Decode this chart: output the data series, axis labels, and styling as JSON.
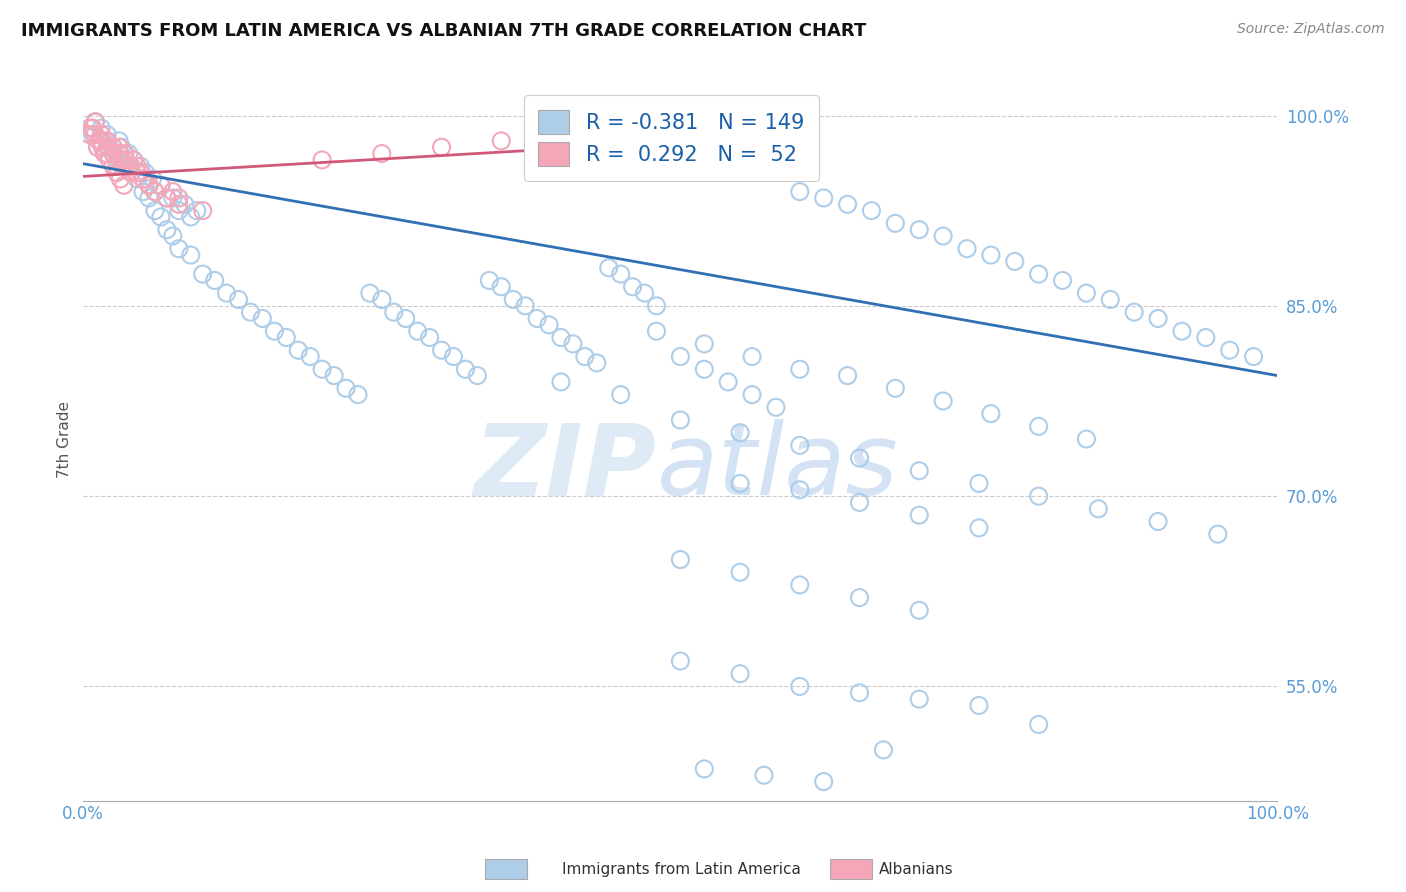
{
  "title": "IMMIGRANTS FROM LATIN AMERICA VS ALBANIAN 7TH GRADE CORRELATION CHART",
  "source": "Source: ZipAtlas.com",
  "xlabel_legend1": "Immigrants from Latin America",
  "xlabel_legend2": "Albanians",
  "ylabel": "7th Grade",
  "r_blue": -0.381,
  "n_blue": 149,
  "r_pink": 0.292,
  "n_pink": 52,
  "xlim": [
    0.0,
    1.0
  ],
  "ylim": [
    0.46,
    1.03
  ],
  "yticks": [
    0.55,
    0.7,
    0.85,
    1.0
  ],
  "ytick_labels": [
    "55.0%",
    "70.0%",
    "85.0%",
    "100.0%"
  ],
  "xticks": [
    0.0,
    0.25,
    0.5,
    0.75,
    1.0
  ],
  "xtick_labels": [
    "0.0%",
    "",
    "",
    "",
    "100.0%"
  ],
  "color_blue": "#aecde8",
  "color_pink": "#f4a7b9",
  "line_color_blue": "#3070b3",
  "line_color_pink": "#d05878",
  "blue_trendline_x": [
    0.0,
    1.0
  ],
  "blue_trendline_y": [
    0.962,
    0.795
  ],
  "pink_trendline_x": [
    0.0,
    0.42
  ],
  "pink_trendline_y": [
    0.952,
    0.975
  ],
  "blue_scatter_x": [
    0.005,
    0.008,
    0.01,
    0.012,
    0.015,
    0.018,
    0.02,
    0.022,
    0.025,
    0.028,
    0.03,
    0.032,
    0.035,
    0.038,
    0.04,
    0.042,
    0.045,
    0.048,
    0.05,
    0.052,
    0.055,
    0.058,
    0.06,
    0.065,
    0.07,
    0.075,
    0.08,
    0.085,
    0.09,
    0.095,
    0.01,
    0.015,
    0.02,
    0.025,
    0.03,
    0.035,
    0.04,
    0.045,
    0.05,
    0.055,
    0.06,
    0.065,
    0.07,
    0.075,
    0.08,
    0.09,
    0.1,
    0.11,
    0.12,
    0.13,
    0.14,
    0.15,
    0.16,
    0.17,
    0.18,
    0.19,
    0.2,
    0.21,
    0.22,
    0.23,
    0.24,
    0.25,
    0.26,
    0.27,
    0.28,
    0.29,
    0.3,
    0.31,
    0.32,
    0.33,
    0.34,
    0.35,
    0.36,
    0.37,
    0.38,
    0.39,
    0.4,
    0.41,
    0.42,
    0.43,
    0.44,
    0.45,
    0.46,
    0.47,
    0.48,
    0.5,
    0.52,
    0.54,
    0.56,
    0.58,
    0.6,
    0.62,
    0.64,
    0.66,
    0.68,
    0.7,
    0.72,
    0.74,
    0.76,
    0.78,
    0.8,
    0.82,
    0.84,
    0.86,
    0.88,
    0.9,
    0.92,
    0.94,
    0.96,
    0.98,
    0.5,
    0.55,
    0.6,
    0.65,
    0.7,
    0.75,
    0.8,
    0.85,
    0.9,
    0.95,
    0.48,
    0.52,
    0.56,
    0.6,
    0.64,
    0.68,
    0.72,
    0.76,
    0.8,
    0.84,
    0.4,
    0.45,
    0.5,
    0.55,
    0.6,
    0.65,
    0.7,
    0.75,
    0.8,
    0.5,
    0.55,
    0.6,
    0.65,
    0.7,
    0.55,
    0.6,
    0.65,
    0.7,
    0.75,
    0.52,
    0.57,
    0.62,
    0.67
  ],
  "blue_scatter_y": [
    0.99,
    0.985,
    0.995,
    0.975,
    0.98,
    0.97,
    0.985,
    0.975,
    0.97,
    0.965,
    0.98,
    0.975,
    0.965,
    0.97,
    0.96,
    0.965,
    0.955,
    0.96,
    0.95,
    0.955,
    0.945,
    0.95,
    0.94,
    0.945,
    0.935,
    0.935,
    0.925,
    0.93,
    0.92,
    0.925,
    0.995,
    0.99,
    0.98,
    0.975,
    0.965,
    0.96,
    0.955,
    0.95,
    0.94,
    0.935,
    0.925,
    0.92,
    0.91,
    0.905,
    0.895,
    0.89,
    0.875,
    0.87,
    0.86,
    0.855,
    0.845,
    0.84,
    0.83,
    0.825,
    0.815,
    0.81,
    0.8,
    0.795,
    0.785,
    0.78,
    0.86,
    0.855,
    0.845,
    0.84,
    0.83,
    0.825,
    0.815,
    0.81,
    0.8,
    0.795,
    0.87,
    0.865,
    0.855,
    0.85,
    0.84,
    0.835,
    0.825,
    0.82,
    0.81,
    0.805,
    0.88,
    0.875,
    0.865,
    0.86,
    0.85,
    0.81,
    0.8,
    0.79,
    0.78,
    0.77,
    0.94,
    0.935,
    0.93,
    0.925,
    0.915,
    0.91,
    0.905,
    0.895,
    0.89,
    0.885,
    0.875,
    0.87,
    0.86,
    0.855,
    0.845,
    0.84,
    0.83,
    0.825,
    0.815,
    0.81,
    0.76,
    0.75,
    0.74,
    0.73,
    0.72,
    0.71,
    0.7,
    0.69,
    0.68,
    0.67,
    0.83,
    0.82,
    0.81,
    0.8,
    0.795,
    0.785,
    0.775,
    0.765,
    0.755,
    0.745,
    0.79,
    0.78,
    0.57,
    0.56,
    0.55,
    0.545,
    0.54,
    0.535,
    0.52,
    0.65,
    0.64,
    0.63,
    0.62,
    0.61,
    0.71,
    0.705,
    0.695,
    0.685,
    0.675,
    0.485,
    0.48,
    0.475,
    0.5
  ],
  "pink_scatter_x": [
    0.005,
    0.008,
    0.01,
    0.012,
    0.015,
    0.018,
    0.02,
    0.022,
    0.025,
    0.028,
    0.03,
    0.032,
    0.035,
    0.038,
    0.04,
    0.042,
    0.045,
    0.048,
    0.05,
    0.055,
    0.06,
    0.065,
    0.07,
    0.075,
    0.08,
    0.015,
    0.02,
    0.025,
    0.03,
    0.035,
    0.04,
    0.045,
    0.05,
    0.055,
    0.06,
    0.007,
    0.01,
    0.013,
    0.016,
    0.019,
    0.022,
    0.025,
    0.028,
    0.031,
    0.034,
    0.2,
    0.25,
    0.3,
    0.35,
    0.39,
    0.08,
    0.1
  ],
  "pink_scatter_y": [
    0.985,
    0.99,
    0.995,
    0.975,
    0.98,
    0.97,
    0.975,
    0.965,
    0.97,
    0.96,
    0.975,
    0.965,
    0.97,
    0.96,
    0.955,
    0.965,
    0.96,
    0.955,
    0.95,
    0.945,
    0.94,
    0.945,
    0.935,
    0.94,
    0.93,
    0.985,
    0.98,
    0.975,
    0.97,
    0.965,
    0.96,
    0.955,
    0.95,
    0.945,
    0.94,
    0.99,
    0.985,
    0.98,
    0.975,
    0.97,
    0.965,
    0.96,
    0.955,
    0.95,
    0.945,
    0.965,
    0.97,
    0.975,
    0.98,
    0.975,
    0.935,
    0.925
  ]
}
